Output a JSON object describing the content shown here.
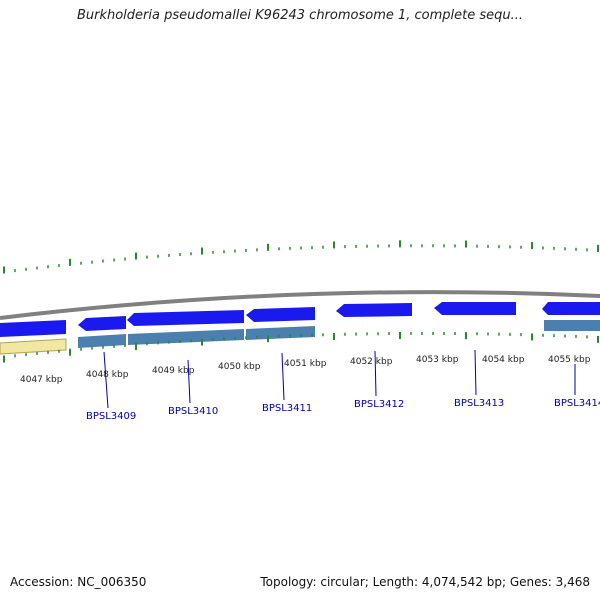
{
  "title": "Burkholderia pseudomallei K96243 chromosome 1, complete sequ...",
  "footer": {
    "accession": "Accession: NC_006350",
    "summary": "Topology: circular; Length: 4,074,542 bp; Genes: 3,468"
  },
  "colors": {
    "backbone": "#808080",
    "gene_blue": "#1a1aee",
    "gene_band": "#4a7fb0",
    "gene_yellow": "#f2e7a0",
    "tick_green": "#2a8a2a",
    "label_blue": "#0000aa"
  },
  "ruler": {
    "unit": "kbp",
    "labels": [
      "4047 kbp",
      "4048 kbp",
      "4049 kbp",
      "4050 kbp",
      "4051 kbp",
      "4052 kbp",
      "4053 kbp",
      "4054 kbp",
      "4055 kbp"
    ]
  },
  "genes": [
    {
      "id": "BPSL3409"
    },
    {
      "id": "BPSL3410"
    },
    {
      "id": "BPSL3411"
    },
    {
      "id": "BPSL3412"
    },
    {
      "id": "BPSL3413"
    },
    {
      "id": "BPSL3414"
    }
  ]
}
